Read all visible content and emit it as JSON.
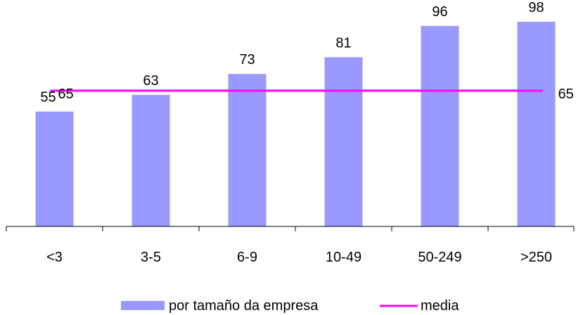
{
  "chart_data": {
    "type": "bar",
    "categories": [
      "<3",
      "3-5",
      "6-9",
      "10-49",
      "50-249",
      ">250"
    ],
    "series": [
      {
        "name": "por tamaño da empresa",
        "type": "bar",
        "values": [
          55,
          63,
          73,
          81,
          96,
          98
        ],
        "color": "#9999ff"
      },
      {
        "name": "media",
        "type": "line",
        "values": [
          65,
          65,
          65,
          65,
          65,
          65
        ],
        "color": "#ff00ff",
        "labels": [
          {
            "index": 0,
            "text": "65"
          },
          {
            "index": 5,
            "text": "65"
          }
        ]
      }
    ],
    "ylim": [
      0,
      100
    ],
    "grid": false,
    "legend": "bottom"
  }
}
